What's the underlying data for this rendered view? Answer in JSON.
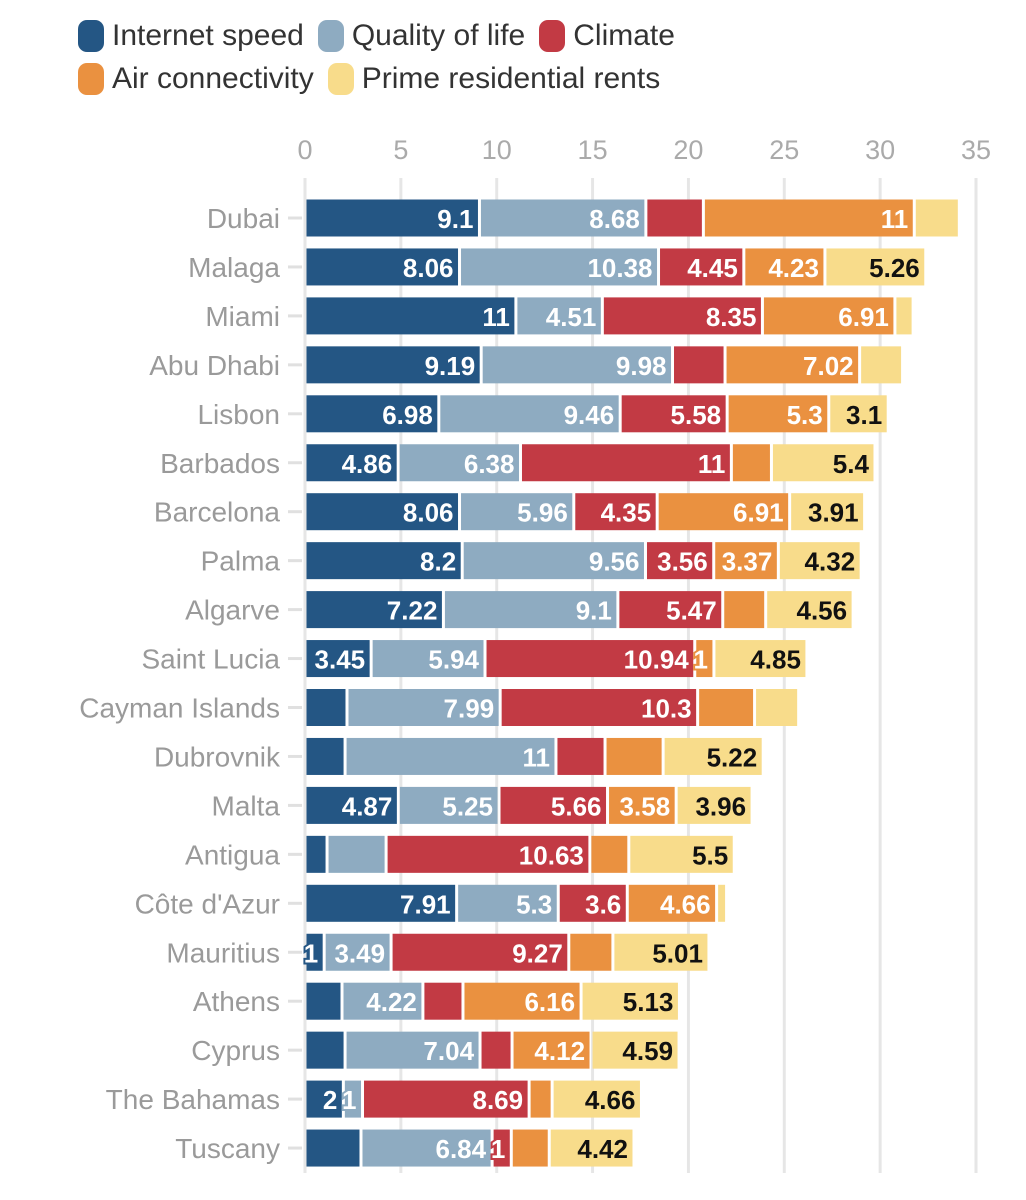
{
  "chart_data": {
    "type": "bar",
    "orientation": "horizontal",
    "stacked": true,
    "title": "",
    "xlabel": "",
    "ylabel": "",
    "xlim": [
      0,
      35
    ],
    "xticks": [
      0,
      5,
      10,
      15,
      20,
      25,
      30,
      35
    ],
    "grid": true,
    "legend_position": "top-left",
    "categories": [
      "Dubai",
      "Malaga",
      "Miami",
      "Abu Dhabi",
      "Lisbon",
      "Barbados",
      "Barcelona",
      "Palma",
      "Algarve",
      "Saint Lucia",
      "Cayman Islands",
      "Dubrovnik",
      "Malta",
      "Antigua",
      "Côte d'Azur",
      "Mauritius",
      "Athens",
      "Cyprus",
      "The Bahamas",
      "Tuscany"
    ],
    "series": [
      {
        "name": "Internet speed",
        "color": "#245684",
        "label_color": "#ffffff",
        "values": [
          9.1,
          8.06,
          11,
          9.19,
          6.98,
          4.86,
          8.06,
          8.2,
          7.22,
          3.45,
          2.19,
          2.09,
          4.87,
          1.15,
          7.91,
          1,
          1.93,
          2.09,
          2,
          2.92
        ],
        "labels": [
          "9.1",
          "8.06",
          "11",
          "9.19",
          "6.98",
          "4.86",
          "8.06",
          "8.2",
          "7.22",
          "3.45",
          "",
          "",
          "4.87",
          "",
          "7.91",
          "1",
          "",
          "",
          "2",
          ""
        ]
      },
      {
        "name": "Quality of life",
        "color": "#8eabc1",
        "label_color": "#ffffff",
        "values": [
          8.68,
          10.38,
          4.51,
          9.98,
          9.46,
          6.38,
          5.96,
          9.56,
          9.1,
          5.94,
          7.99,
          11,
          5.25,
          3.08,
          5.3,
          3.49,
          4.22,
          7.04,
          1,
          6.84
        ],
        "labels": [
          "8.68",
          "10.38",
          "4.51",
          "9.98",
          "9.46",
          "6.38",
          "5.96",
          "9.56",
          "9.1",
          "5.94",
          "7.99",
          "11",
          "5.25",
          "",
          "5.3",
          "3.49",
          "4.22",
          "7.04",
          "1",
          "6.84"
        ]
      },
      {
        "name": "Climate",
        "color": "#c23a44",
        "label_color": "#ffffff",
        "values": [
          3.0,
          4.45,
          8.35,
          2.74,
          5.58,
          11,
          4.35,
          3.56,
          5.47,
          10.94,
          10.3,
          2.56,
          5.66,
          10.63,
          3.6,
          9.27,
          2.09,
          1.67,
          8.69,
          1
        ],
        "labels": [
          "",
          "4.45",
          "8.35",
          "",
          "5.58",
          "11",
          "4.35",
          "3.56",
          "5.47",
          "10.94",
          "10.3",
          "",
          "5.66",
          "10.63",
          "3.6",
          "9.27",
          "",
          "",
          "8.69",
          "1"
        ]
      },
      {
        "name": "Air connectivity",
        "color": "#ea9140",
        "label_color": "#ffffff",
        "values": [
          11,
          4.23,
          6.91,
          7.02,
          5.3,
          2.09,
          6.91,
          3.37,
          2.24,
          1,
          2.97,
          3.03,
          3.58,
          2.03,
          4.66,
          2.3,
          6.16,
          4.12,
          1.2,
          1.98
        ],
        "labels": [
          "11",
          "4.23",
          "6.91",
          "7.02",
          "5.3",
          "",
          "6.91",
          "3.37",
          "",
          "1",
          "",
          "",
          "3.58",
          "",
          "4.66",
          "",
          "6.16",
          "4.12",
          "",
          ""
        ]
      },
      {
        "name": "Prime residential rents",
        "color": "#f8dc8b",
        "label_color": "#111111",
        "values": [
          2.35,
          5.26,
          0.95,
          2.24,
          3.1,
          5.4,
          3.91,
          4.32,
          4.56,
          4.85,
          2.3,
          5.22,
          3.96,
          5.5,
          0.52,
          5.01,
          5.13,
          4.59,
          4.66,
          4.42
        ],
        "labels": [
          "",
          "5.26",
          "",
          "",
          "3.1",
          "5.4",
          "3.91",
          "4.32",
          "4.56",
          "4.85",
          "",
          "5.22",
          "3.96",
          "5.5",
          "",
          "5.01",
          "5.13",
          "4.59",
          "4.66",
          "4.42"
        ]
      }
    ]
  }
}
